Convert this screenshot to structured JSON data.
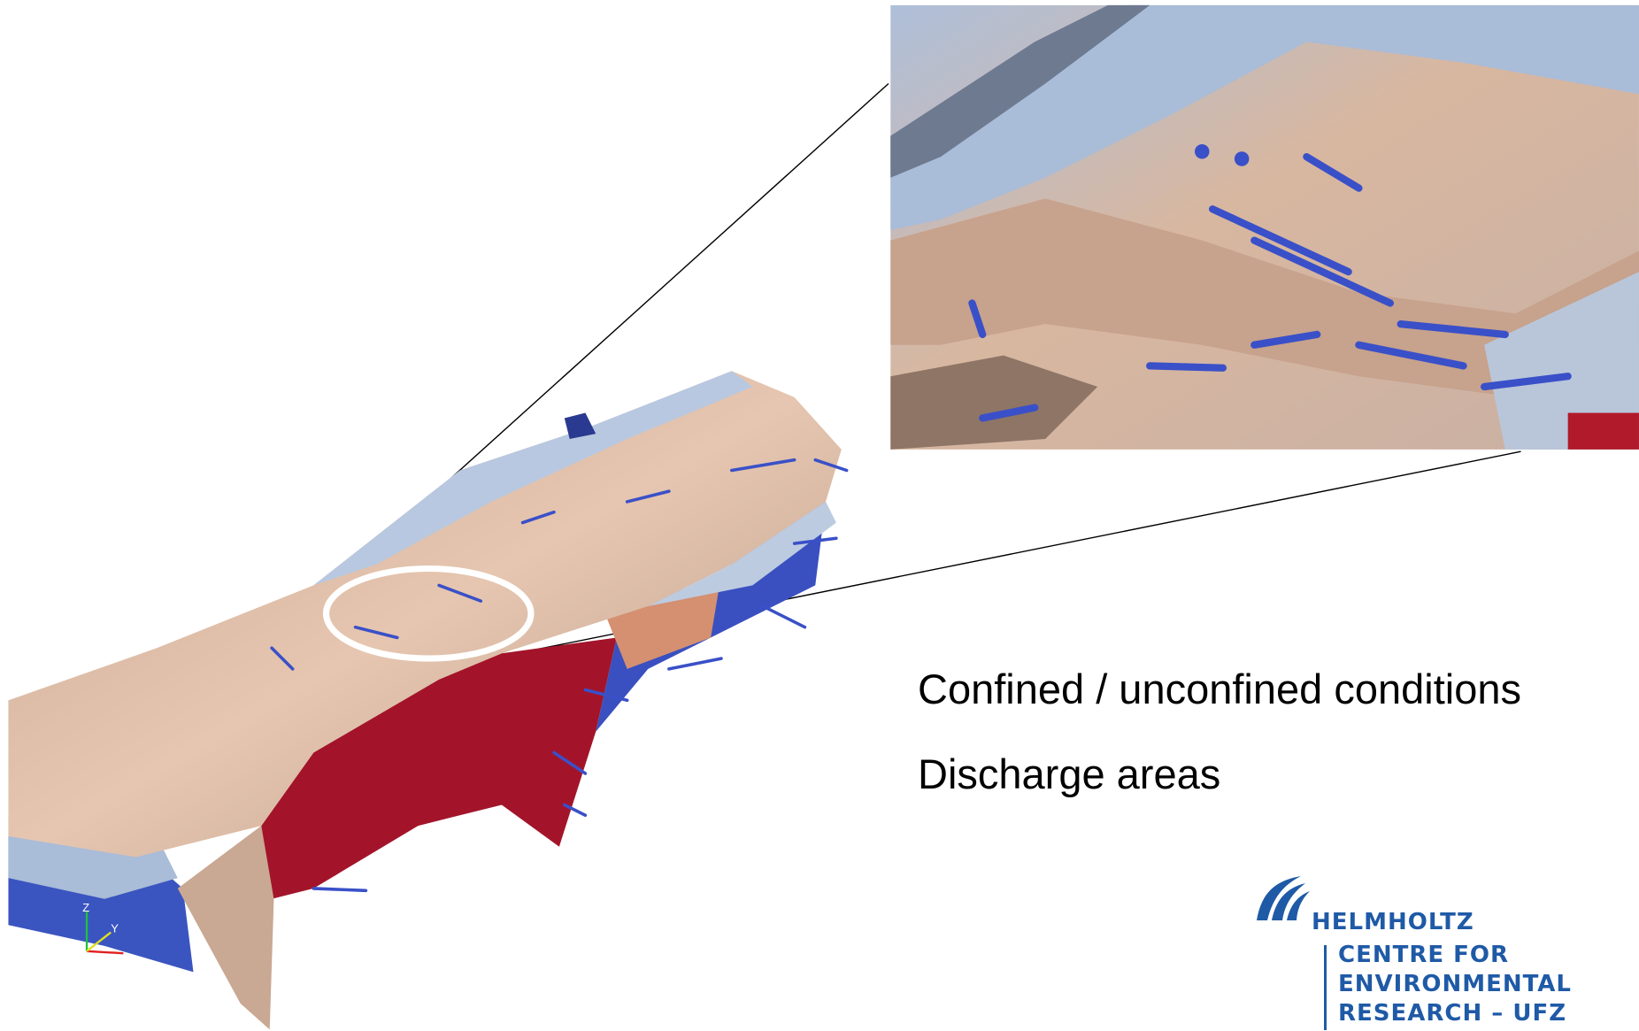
{
  "bullets": [
    "Confined / unconfined conditions",
    "Discharge areas"
  ],
  "orientation_axes": [
    "Z",
    "Y"
  ],
  "logo": {
    "name": "HELMHOLTZ",
    "lines": [
      "CENTRE FOR",
      "ENVIRONMENTAL",
      "RESEARCH – UFZ"
    ]
  }
}
